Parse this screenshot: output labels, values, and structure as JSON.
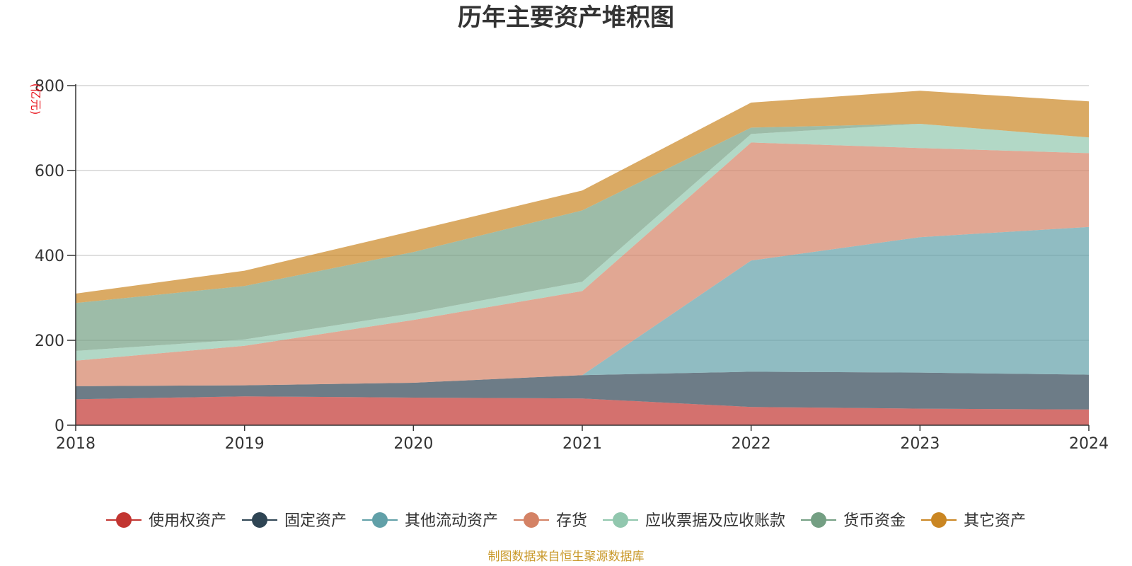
{
  "chart_data": {
    "type": "area",
    "stacked": true,
    "title": "历年主要资产堆积图",
    "unit_label": "(亿元)",
    "x": [
      "2018",
      "2019",
      "2020",
      "2021",
      "2022",
      "2023",
      "2024"
    ],
    "ylim": [
      0,
      800
    ],
    "yticks": [
      0,
      200,
      400,
      600,
      800
    ],
    "grid": true,
    "legend_position": "bottom",
    "series": [
      {
        "name": "使用权资产",
        "color": "#c23531",
        "values": [
          61,
          68,
          65,
          63,
          43,
          39,
          37
        ]
      },
      {
        "name": "固定资产",
        "color": "#2f4554",
        "values": [
          31,
          26,
          35,
          55,
          83,
          85,
          82
        ]
      },
      {
        "name": "其他流动资产",
        "color": "#61a0a8",
        "values": [
          0,
          0,
          0,
          0,
          262,
          319,
          348
        ]
      },
      {
        "name": "存货",
        "color": "#d48265",
        "values": [
          60,
          93,
          148,
          198,
          278,
          210,
          174
        ]
      },
      {
        "name": "应收票据及应收账款",
        "color": "#91c7ae",
        "values": [
          23,
          15,
          16,
          22,
          20,
          57,
          37
        ]
      },
      {
        "name": "货币资金",
        "color": "#749f83",
        "values": [
          113,
          126,
          144,
          168,
          15,
          0,
          0
        ]
      },
      {
        "name": "其它资产",
        "color": "#ca8622",
        "values": [
          22,
          36,
          50,
          47,
          59,
          78,
          85
        ]
      }
    ]
  },
  "source_text": "制图数据来自恒生聚源数据库"
}
